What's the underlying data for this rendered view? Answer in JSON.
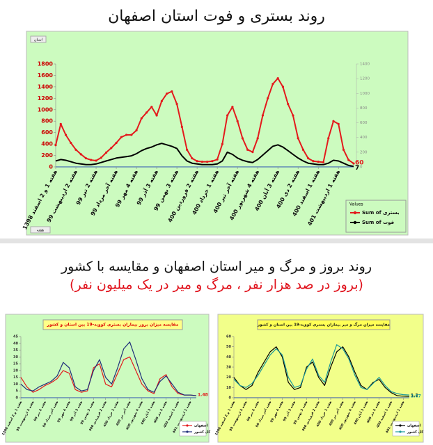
{
  "header": {
    "title": "روند بستری و فوت استان اصفهان"
  },
  "section": {
    "title": "روند بروز و مرگ و میر استان اصفهان و مقایسه با کشور",
    "subtitle": "(بروز در صد هزار نفر ، مرگ و میر در یک میلیون نفر)"
  },
  "chart_data": [
    {
      "type": "line",
      "filter_label": "استان",
      "axis_field": "هفته",
      "legend_title": "Values",
      "legend": "bottom-right",
      "categories": [
        "هفته 1 و 2 اسفند 1398",
        null,
        null,
        null,
        "هفته 2 اردیبهشت 99",
        null,
        null,
        null,
        "هفته 2 تیر 99",
        null,
        null,
        null,
        "هفته آخر مرداد 99",
        null,
        null,
        null,
        "هفته 4 مهر 99",
        null,
        null,
        null,
        "هفته 3 آذر 99",
        null,
        null,
        null,
        "هفته 3 بهمن 99",
        null,
        null,
        null,
        "هفته 2 فروردین 400",
        null,
        null,
        null,
        "هفته 1 خرداد 400",
        null,
        null,
        null,
        "هفته آخر تیر 400",
        null,
        null,
        null,
        "هفته 4 شهریور 400",
        null,
        null,
        null,
        "هفته 3 آبان 400",
        null,
        null,
        null,
        "هفته 2 دی 400",
        null,
        null,
        null,
        "هفته 1 اسفند 400",
        null,
        null,
        null,
        "هفته 1 اردیبهشت 401",
        null,
        null,
        null
      ],
      "ylim": [
        0,
        1800
      ],
      "yticks": [
        0,
        200,
        400,
        600,
        800,
        1000,
        1200,
        1400,
        1600,
        1800
      ],
      "y2lim": [
        0,
        1400
      ],
      "y2ticks": [
        0,
        200,
        400,
        600,
        800,
        1000,
        1200,
        1400
      ],
      "grid": false,
      "series": [
        {
          "name": "Sum of بستری",
          "color": "#e31a1c",
          "axis": "y",
          "markers": true,
          "label_last": true,
          "values": [
            380,
            750,
            560,
            420,
            300,
            220,
            150,
            120,
            110,
            160,
            250,
            330,
            420,
            520,
            560,
            560,
            640,
            850,
            950,
            1050,
            900,
            1150,
            1280,
            1320,
            1100,
            700,
            300,
            150,
            100,
            90,
            90,
            100,
            130,
            400,
            900,
            1050,
            800,
            500,
            300,
            260,
            500,
            900,
            1200,
            1450,
            1550,
            1400,
            1100,
            900,
            500,
            300,
            150,
            100,
            90,
            80,
            500,
            800,
            750,
            300,
            120,
            60
          ]
        },
        {
          "name": "Sum of فوت",
          "color": "#000000",
          "axis": "y2",
          "markers": false,
          "label_last": true,
          "values": [
            80,
            100,
            90,
            70,
            50,
            40,
            30,
            30,
            40,
            60,
            80,
            100,
            120,
            130,
            140,
            150,
            180,
            220,
            250,
            270,
            300,
            320,
            300,
            280,
            250,
            150,
            80,
            50,
            40,
            30,
            30,
            30,
            40,
            80,
            200,
            170,
            120,
            90,
            70,
            60,
            100,
            160,
            220,
            280,
            300,
            270,
            220,
            170,
            120,
            80,
            50,
            40,
            30,
            30,
            50,
            90,
            80,
            50,
            20,
            7
          ]
        }
      ]
    },
    {
      "type": "line",
      "title": "مقایسه میزان بروز بیماران بستری کووید-19 بین استان و کشور",
      "legend": "bottom-right",
      "categories": [
        "هفته 1 و 2 اسفند 1398",
        null,
        "هفته 2 اردیبهشت 99",
        null,
        "هفته 2 تیر 99",
        null,
        "هفته آخر مرداد 99",
        null,
        "هفته 4 مهر 99",
        null,
        "هفته 3 آذر 99",
        null,
        "هفته 3 بهمن 99",
        null,
        "هفته 2 فروردین 400",
        null,
        "هفته 1 خرداد 400",
        null,
        "هفته آخر تیر 400",
        null,
        "هفته 4 شهریور 400",
        null,
        "هفته 3 آبان 400",
        null,
        "هفته 2 دی 400",
        null,
        "هفته 1 اسفند 400",
        null,
        "هفته 1 اردیبهشت 401",
        null
      ],
      "ylim": [
        0,
        45
      ],
      "yticks": [
        0,
        5,
        10,
        15,
        20,
        25,
        30,
        35,
        40,
        45
      ],
      "grid": false,
      "series": [
        {
          "name": "اصفهان",
          "color": "#e31a1c",
          "axis": "y",
          "markers": false,
          "label_last": true,
          "values": [
            15,
            8,
            4,
            6,
            9,
            11,
            14,
            20,
            18,
            6,
            4,
            5,
            22,
            25,
            10,
            8,
            18,
            28,
            30,
            20,
            10,
            5,
            3,
            14,
            17,
            8,
            3,
            2,
            2,
            1.48
          ]
        },
        {
          "name": "کل کشور",
          "color": "#1f2f7a",
          "axis": "y",
          "markers": false,
          "label_last": false,
          "values": [
            10,
            6,
            5,
            8,
            10,
            12,
            16,
            26,
            22,
            8,
            5,
            6,
            20,
            28,
            15,
            10,
            22,
            36,
            41,
            28,
            14,
            6,
            4,
            12,
            16,
            10,
            4,
            2,
            2,
            1.5
          ]
        }
      ]
    },
    {
      "type": "line",
      "title": "مقایسه میزان مرگ و میر بیماران بستری کووید-19 بین استان و کشور",
      "legend": "bottom-right",
      "categories": [
        "هفته 1 و 2 اسفند 1398",
        null,
        "هفته 2 اردیبهشت 99",
        null,
        "هفته 2 تیر 99",
        null,
        "هفته آخر مرداد 99",
        null,
        "هفته 4 مهر 99",
        null,
        "هفته 3 آذر 99",
        null,
        "هفته 3 بهمن 99",
        null,
        "هفته 2 فروردین 400",
        null,
        "هفته 1 خرداد 400",
        null,
        "هفته آخر تیر 400",
        null,
        "هفته 4 شهریور 400",
        null,
        "هفته 3 آبان 400",
        null,
        "هفته 2 دی 400",
        null,
        "هفته 1 اسفند 400",
        null,
        "هفته 1 اردیبهشت 401",
        null
      ],
      "ylim": [
        0,
        60
      ],
      "yticks": [
        0,
        10,
        20,
        30,
        40,
        50,
        60
      ],
      "grid": false,
      "series": [
        {
          "name": "اصفهان",
          "color": "#000000",
          "axis": "y",
          "markers": false,
          "label_last": true,
          "values": [
            20,
            12,
            8,
            12,
            25,
            35,
            45,
            50,
            40,
            15,
            8,
            10,
            30,
            35,
            20,
            12,
            30,
            45,
            50,
            40,
            25,
            12,
            8,
            15,
            18,
            10,
            5,
            2,
            1.5,
            1.2
          ]
        },
        {
          "name": "کل کشور",
          "color": "#1a9a9a",
          "axis": "y",
          "markers": false,
          "label_last": true,
          "values": [
            18,
            12,
            10,
            14,
            22,
            32,
            42,
            48,
            42,
            20,
            10,
            12,
            28,
            38,
            22,
            15,
            35,
            52,
            48,
            38,
            22,
            10,
            8,
            14,
            20,
            12,
            6,
            4,
            3,
            2.67
          ]
        }
      ]
    }
  ]
}
